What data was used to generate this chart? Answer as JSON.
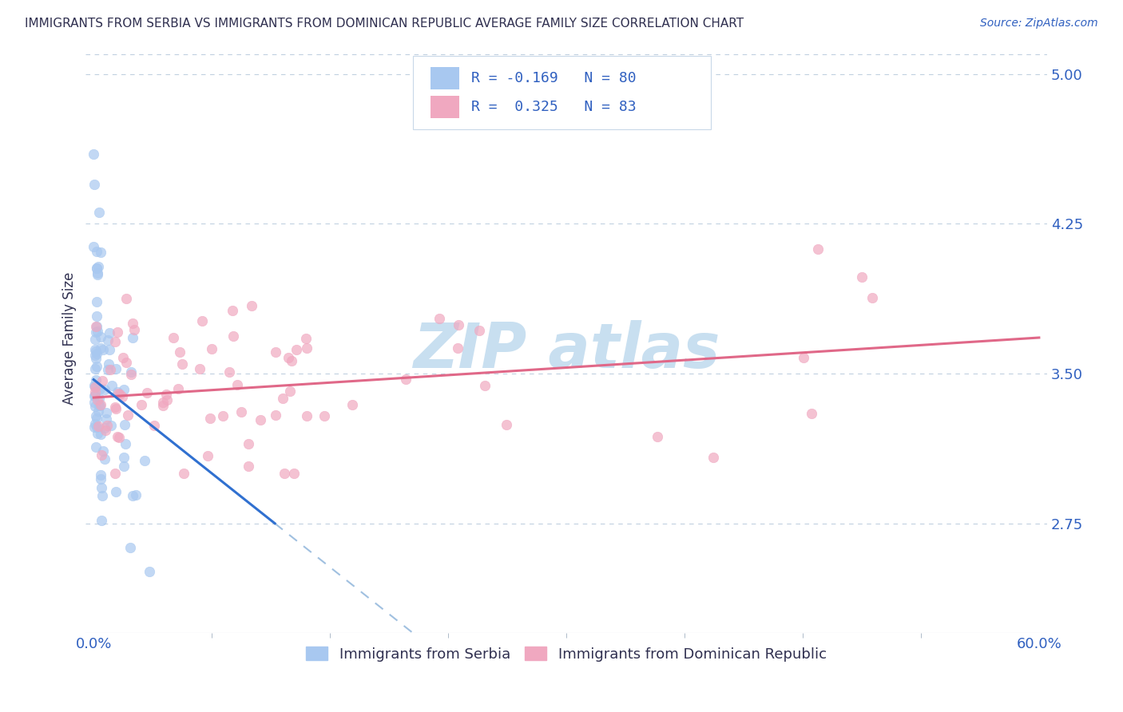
{
  "title": "IMMIGRANTS FROM SERBIA VS IMMIGRANTS FROM DOMINICAN REPUBLIC AVERAGE FAMILY SIZE CORRELATION CHART",
  "source": "Source: ZipAtlas.com",
  "ylabel": "Average Family Size",
  "xlim": [
    -0.005,
    0.605
  ],
  "ylim": [
    2.2,
    5.15
  ],
  "yticks": [
    2.75,
    3.5,
    4.25,
    5.0
  ],
  "xtick_labels": [
    "0.0%",
    "60.0%"
  ],
  "xtick_vals": [
    0.0,
    0.6
  ],
  "serbia_R": -0.169,
  "serbia_N": 80,
  "dr_R": 0.325,
  "dr_N": 83,
  "serbia_color": "#a8c8f0",
  "dr_color": "#f0a8c0",
  "serbia_line_color": "#3070d0",
  "serbia_dash_color": "#a0c0e0",
  "dr_line_color": "#e06888",
  "watermark_color": "#c8dff0",
  "legend_label_serbia": "Immigrants from Serbia",
  "legend_label_dr": "Immigrants from Dominican Republic",
  "text_color_blue": "#3060c0",
  "text_color_dark": "#303050",
  "bg_color": "#ffffff",
  "grid_color": "#c0d0e0",
  "serbia_line_x0": 0.0,
  "serbia_line_y0": 3.47,
  "serbia_line_x1": 0.115,
  "serbia_line_y1": 2.75,
  "dr_line_x0": 0.0,
  "dr_line_y0": 3.38,
  "dr_line_x1": 0.6,
  "dr_line_y1": 3.68
}
